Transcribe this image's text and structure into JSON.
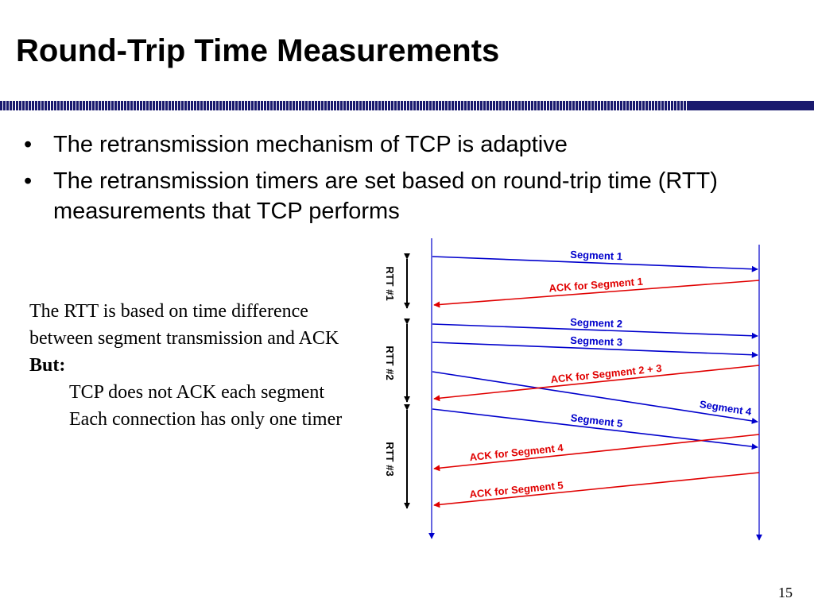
{
  "slide": {
    "title": "Round-Trip Time Measurements",
    "page_number": "15"
  },
  "bullets": [
    "The retransmission mechanism of TCP is adaptive",
    "The retransmission timers are set based on round-trip time (RTT) measurements that TCP performs"
  ],
  "note": {
    "line1": "The RTT is based on time difference between segment transmission and ACK",
    "but_label": "But:",
    "line2": "TCP does not ACK each segment",
    "line3": "Each connection has only one timer"
  },
  "diagram": {
    "rtt_labels": [
      "RTT #1",
      "RTT #2",
      "RTT #3"
    ],
    "messages": [
      {
        "label": "Segment 1",
        "kind": "segment"
      },
      {
        "label": "ACK for Segment 1",
        "kind": "ack"
      },
      {
        "label": "Segment 2",
        "kind": "segment"
      },
      {
        "label": "Segment 3",
        "kind": "segment"
      },
      {
        "label": "Segment 4",
        "kind": "segment"
      },
      {
        "label": "ACK for Segment 2 + 3",
        "kind": "ack"
      },
      {
        "label": "Segment 5",
        "kind": "segment"
      },
      {
        "label": "ACK for Segment 4",
        "kind": "ack"
      },
      {
        "label": "ACK for Segment 5",
        "kind": "ack"
      }
    ],
    "colors": {
      "segment": "#0000cc",
      "ack": "#e00000",
      "timeline": "#0000cc",
      "rtt": "#000000"
    }
  }
}
